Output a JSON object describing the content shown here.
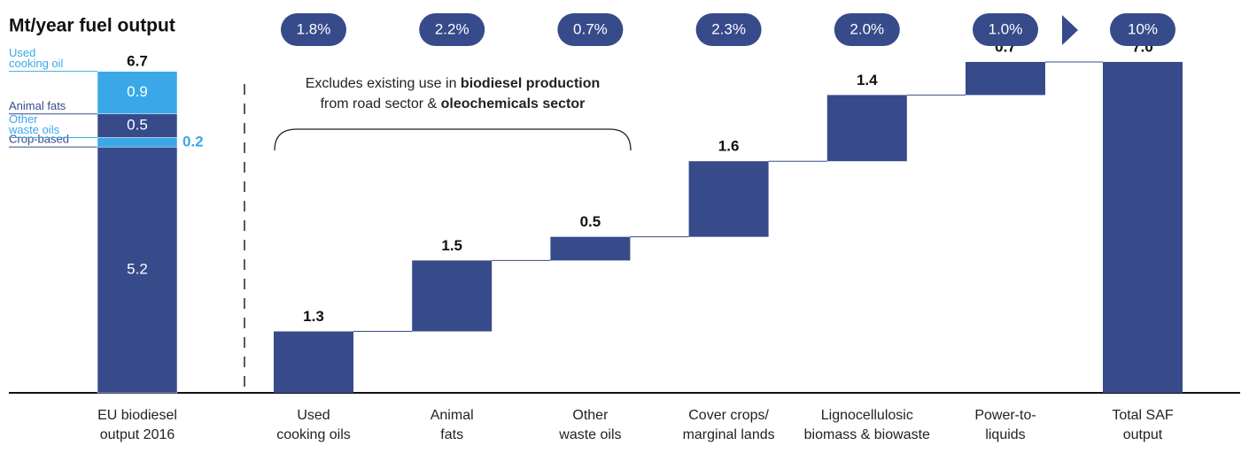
{
  "chart_data": {
    "type": "waterfall",
    "title": "Mt/year fuel output",
    "color": "#374a8a",
    "badge_color": "#374a8a",
    "categories": [
      [
        "Used",
        "cooking oils"
      ],
      [
        "Animal",
        "fats"
      ],
      [
        "Other",
        "waste oils"
      ],
      [
        "Cover crops/",
        "marginal lands"
      ],
      [
        "Lignocellulosic",
        "biomass & biowaste"
      ],
      [
        "Power-to-",
        "liquids"
      ]
    ],
    "values": [
      1.3,
      1.5,
      0.5,
      1.6,
      1.4,
      0.7
    ],
    "badges": [
      "1.8%",
      "2.2%",
      "0.7%",
      "2.3%",
      "2.0%",
      "1.0%"
    ],
    "total": {
      "category": [
        "Total SAF",
        "output"
      ],
      "value": 7.0,
      "value_label": "7.0",
      "badge": "10%"
    },
    "reference": {
      "category": [
        "EU biodiesel",
        "output 2016"
      ],
      "total": 6.7,
      "series": [
        {
          "name": [
            "Crop-based"
          ],
          "color": "#374a8a",
          "values": [
            5.2
          ]
        },
        {
          "name": [
            "Other",
            "waste oils"
          ],
          "color": "#3aa8e8",
          "values": [
            0.2
          ]
        },
        {
          "name": [
            "Animal fats"
          ],
          "color": "#374a8a",
          "values": [
            0.5
          ]
        },
        {
          "name": [
            "Used",
            "cooking oil"
          ],
          "color": "#3aa8e8",
          "values": [
            0.9
          ]
        }
      ]
    },
    "annotation": [
      [
        "Excludes existing use in ",
        "biodiesel production"
      ],
      [
        "from road sector & ",
        "oleochemicals sector"
      ]
    ]
  }
}
